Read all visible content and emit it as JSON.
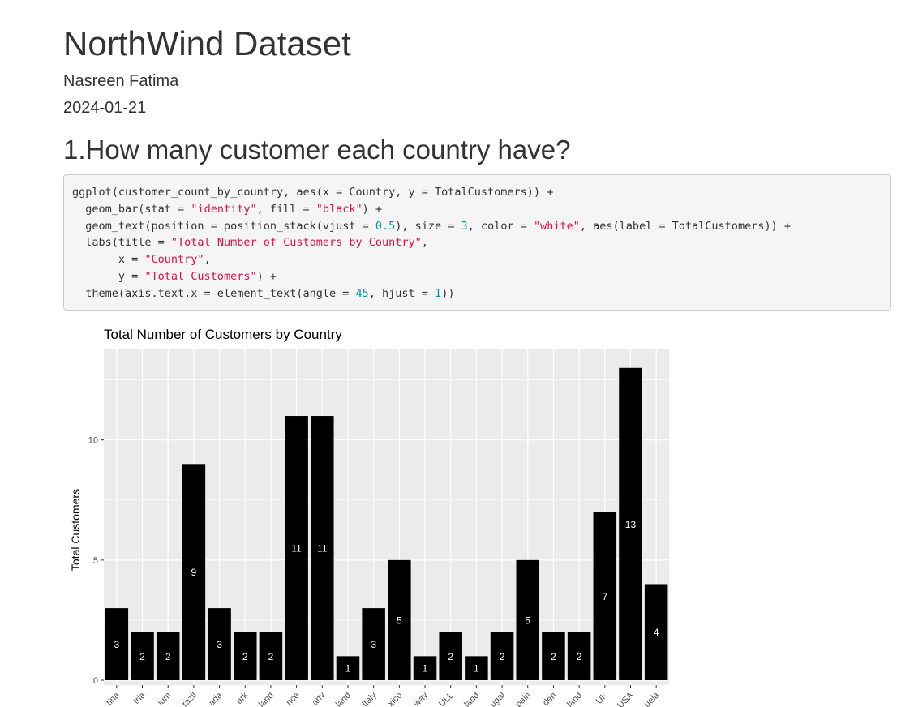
{
  "document": {
    "title": "NorthWind Dataset",
    "author": "Nasreen Fatima",
    "date": "2024-01-21"
  },
  "section": {
    "heading": "1.How many customer each country have?"
  },
  "code": {
    "lines": [
      [
        {
          "t": "ggplot(customer_count_by_country, aes(x = Country, y = TotalCustomers)) +",
          "k": "plain"
        }
      ],
      [
        {
          "t": "  geom_bar(stat = ",
          "k": "plain"
        },
        {
          "t": "\"identity\"",
          "k": "str"
        },
        {
          "t": ", fill = ",
          "k": "plain"
        },
        {
          "t": "\"black\"",
          "k": "str"
        },
        {
          "t": ") +",
          "k": "plain"
        }
      ],
      [
        {
          "t": "  geom_text(position = position_stack(vjust = ",
          "k": "plain"
        },
        {
          "t": "0.5",
          "k": "num"
        },
        {
          "t": "), size = ",
          "k": "plain"
        },
        {
          "t": "3",
          "k": "num"
        },
        {
          "t": ", color = ",
          "k": "plain"
        },
        {
          "t": "\"white\"",
          "k": "str"
        },
        {
          "t": ", aes(label = TotalCustomers)) +",
          "k": "plain"
        }
      ],
      [
        {
          "t": "  labs(title = ",
          "k": "plain"
        },
        {
          "t": "\"Total Number of Customers by Country\"",
          "k": "str"
        },
        {
          "t": ",",
          "k": "plain"
        }
      ],
      [
        {
          "t": "       x = ",
          "k": "plain"
        },
        {
          "t": "\"Country\"",
          "k": "str"
        },
        {
          "t": ",",
          "k": "plain"
        }
      ],
      [
        {
          "t": "       y = ",
          "k": "plain"
        },
        {
          "t": "\"Total Customers\"",
          "k": "str"
        },
        {
          "t": ") +",
          "k": "plain"
        }
      ],
      [
        {
          "t": "  theme(axis.text.x = element_text(angle = ",
          "k": "plain"
        },
        {
          "t": "45",
          "k": "num"
        },
        {
          "t": ", hjust = ",
          "k": "plain"
        },
        {
          "t": "1",
          "k": "num"
        },
        {
          "t": "))",
          "k": "plain"
        }
      ]
    ],
    "colors": {
      "string": "#dd1144",
      "number": "#009999",
      "plain": "#333333"
    }
  },
  "chart_data": {
    "type": "bar",
    "title": "Total Number of Customers by Country",
    "xlabel": "",
    "ylabel": "Total Customers",
    "ylim": [
      0,
      13.6
    ],
    "yticks": [
      0,
      5,
      10
    ],
    "categories": [
      "tina",
      "tria",
      "ium",
      "razil",
      "ada",
      "ark",
      "land",
      "nce",
      "any",
      "land",
      "Italy",
      "xico",
      "way",
      "ULL",
      "land",
      "ugal",
      "pain",
      "den",
      "land",
      "UK",
      "USA",
      "uela"
    ],
    "values": [
      3,
      2,
      2,
      9,
      3,
      2,
      2,
      11,
      11,
      1,
      3,
      5,
      1,
      2,
      1,
      2,
      5,
      2,
      2,
      7,
      13,
      4
    ],
    "bar_color": "#000000",
    "label_color": "#ffffff",
    "panel_bg": "#ebebeb",
    "grid_color": "#ffffff",
    "grid": true,
    "legend": "none"
  }
}
